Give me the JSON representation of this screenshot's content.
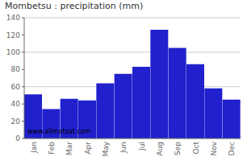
{
  "chart_data": {
    "type": "bar",
    "title": "Mombetsu : precipitation (mm)",
    "categories": [
      "Jan",
      "Feb",
      "Mar",
      "Apr",
      "May",
      "Jun",
      "Jul",
      "Aug",
      "Sep",
      "Oct",
      "Nov",
      "Dec"
    ],
    "values": [
      51,
      34,
      46,
      44,
      64,
      75,
      83,
      126,
      105,
      86,
      58,
      45
    ],
    "color": "#2020cc",
    "ylim": [
      0,
      140
    ],
    "yticks": [
      0,
      20,
      40,
      60,
      80,
      100,
      120,
      140
    ],
    "grid": true,
    "annotations": [
      "www.allmetsat.com"
    ]
  }
}
